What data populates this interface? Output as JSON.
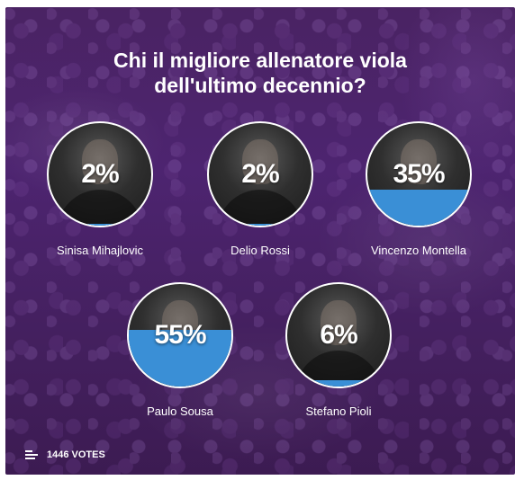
{
  "poll": {
    "title_line1": "Chi il migliore allenatore viola",
    "title_line2": "dell'ultimo decennio?",
    "options": [
      {
        "name": "Sinisa Mihajlovic",
        "percent": "2%",
        "value": 2
      },
      {
        "name": "Delio Rossi",
        "percent": "2%",
        "value": 2
      },
      {
        "name": "Vincenzo Montella",
        "percent": "35%",
        "value": 35
      },
      {
        "name": "Paulo Sousa",
        "percent": "55%",
        "value": 55
      },
      {
        "name": "Stefano Pioli",
        "percent": "6%",
        "value": 6
      }
    ],
    "votes_label": "1446 VOTES"
  },
  "colors": {
    "accent_fill": "#3a8fd6",
    "background": "#4a2363",
    "text": "#ffffff"
  },
  "icons": {
    "footer": "bar-chart-icon"
  }
}
